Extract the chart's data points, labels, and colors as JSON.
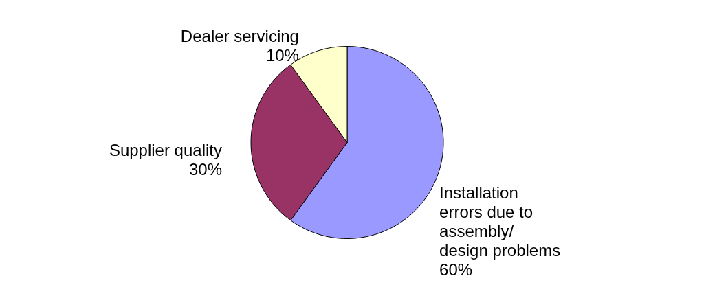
{
  "chart_data": {
    "type": "pie",
    "categories": [
      "Installation errors due to assembly/ design problems",
      "Supplier quality",
      "Dealer servicing"
    ],
    "values": [
      60,
      30,
      10
    ],
    "value_labels": [
      "60%",
      "30%",
      "10%"
    ],
    "colors": [
      "#9999ff",
      "#993366",
      "#ffffcc"
    ],
    "legend": false
  }
}
